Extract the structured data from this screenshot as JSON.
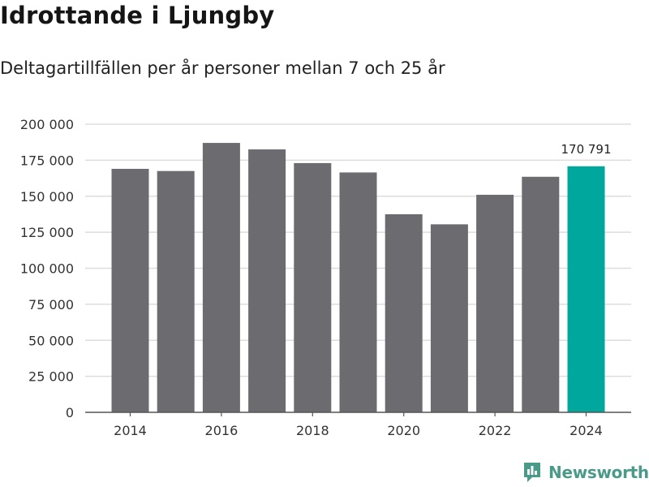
{
  "header": {
    "title": "Idrottande i Ljungby",
    "subtitle": "Deltagartillfällen per år personer mellan 7 och 25 år"
  },
  "brand": {
    "name": "Newsworthy"
  },
  "colors": {
    "bar": "#6c6b70",
    "highlight": "#00a79d",
    "grid": "#dddddd",
    "axis": "#555555",
    "brand": "#4a9a8a"
  },
  "chart_data": {
    "type": "bar",
    "title": "Idrottande i Ljungby",
    "subtitle": "Deltagartillfällen per år personer mellan 7 och 25 år",
    "xlabel": "",
    "ylabel": "",
    "categories": [
      "2014",
      "2015",
      "2016",
      "2017",
      "2018",
      "2019",
      "2020",
      "2021",
      "2022",
      "2023",
      "2024"
    ],
    "values": [
      169000,
      167500,
      187000,
      182500,
      173000,
      166500,
      137500,
      130500,
      151000,
      163500,
      170791
    ],
    "ylim": [
      0,
      200000
    ],
    "y_ticks": [
      0,
      25000,
      50000,
      75000,
      100000,
      125000,
      150000,
      175000,
      200000
    ],
    "y_tick_labels": [
      "0",
      "25 000",
      "50 000",
      "75 000",
      "100 000",
      "125 000",
      "150 000",
      "175 000",
      "200 000"
    ],
    "x_tick_labels": [
      "2014",
      "2016",
      "2018",
      "2020",
      "2022",
      "2024"
    ],
    "highlight_index": 10,
    "annotation": {
      "index": 10,
      "text": "170 791"
    },
    "grid": true,
    "legend": "none"
  }
}
